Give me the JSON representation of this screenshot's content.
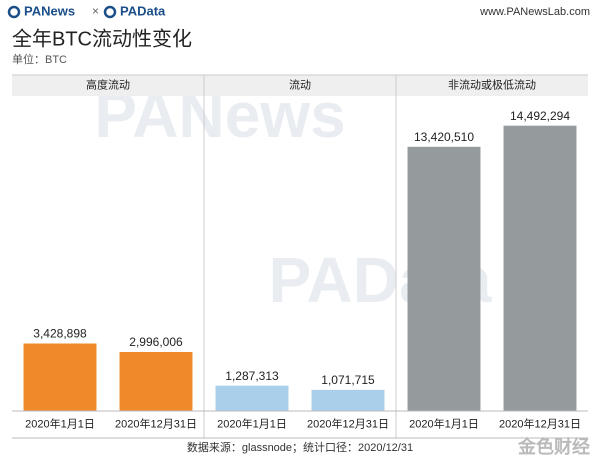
{
  "header": {
    "brand1": "PANews",
    "times": "×",
    "brand2": "PAData",
    "site": "www.PANewsLab.com"
  },
  "watermarks": [
    "PANews",
    "PAData",
    "金色财经"
  ],
  "chart_data": {
    "type": "bar",
    "title": "全年BTC流动性变化",
    "subtitle": "单位：BTC",
    "categories": [
      "2020年1月1日",
      "2020年12月31日"
    ],
    "series": [
      {
        "name": "高度流动",
        "color": "#f0892a",
        "values": [
          3428898,
          2996006
        ],
        "value_labels": [
          "3,428,898",
          "2,996,006"
        ]
      },
      {
        "name": "流动",
        "color": "#a9cfea",
        "values": [
          1287313,
          1071715
        ],
        "value_labels": [
          "1,287,313",
          "1,071,715"
        ]
      },
      {
        "name": "非流动或极低流动",
        "color": "#959b9c",
        "values": [
          13420510,
          14492294
        ],
        "value_labels": [
          "13,420,510",
          "14,492,294"
        ]
      }
    ],
    "ylim": [
      0,
      16000000
    ],
    "source": "数据来源：glassnode；统计口径：2020/12/31"
  }
}
